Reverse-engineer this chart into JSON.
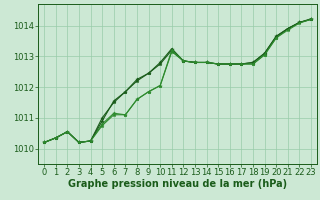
{
  "background_color": "#cce8d4",
  "grid_color": "#99ccaa",
  "line_color_dark": "#1a5c1a",
  "line_color_medium": "#2e8b2e",
  "xlabel": "Graphe pression niveau de la mer (hPa)",
  "xlim": [
    -0.5,
    23.5
  ],
  "ylim": [
    1009.5,
    1014.7
  ],
  "yticks": [
    1010,
    1011,
    1012,
    1013,
    1014
  ],
  "xticks": [
    0,
    1,
    2,
    3,
    4,
    5,
    6,
    7,
    8,
    9,
    10,
    11,
    12,
    13,
    14,
    15,
    16,
    17,
    18,
    19,
    20,
    21,
    22,
    23
  ],
  "series1": [
    [
      0,
      1010.2
    ],
    [
      1,
      1010.35
    ],
    [
      2,
      1010.55
    ],
    [
      3,
      1010.2
    ],
    [
      4,
      1010.25
    ],
    [
      5,
      1010.8
    ],
    [
      6,
      1011.15
    ],
    [
      7,
      1011.1
    ],
    [
      8,
      1011.6
    ],
    [
      9,
      1011.85
    ],
    [
      10,
      1012.05
    ],
    [
      11,
      1013.15
    ],
    [
      12,
      1012.85
    ],
    [
      13,
      1012.8
    ],
    [
      14,
      1012.8
    ],
    [
      15,
      1012.75
    ],
    [
      16,
      1012.75
    ],
    [
      17,
      1012.75
    ],
    [
      18,
      1012.75
    ],
    [
      19,
      1013.05
    ],
    [
      20,
      1013.6
    ],
    [
      21,
      1013.9
    ],
    [
      22,
      1014.1
    ],
    [
      23,
      1014.2
    ]
  ],
  "series2": [
    [
      0,
      1010.2
    ],
    [
      1,
      1010.35
    ],
    [
      2,
      1010.55
    ],
    [
      3,
      1010.2
    ],
    [
      4,
      1010.25
    ],
    [
      5,
      1010.9
    ],
    [
      6,
      1011.55
    ],
    [
      7,
      1011.85
    ],
    [
      8,
      1012.2
    ],
    [
      9,
      1012.45
    ],
    [
      10,
      1012.75
    ],
    [
      11,
      1013.2
    ],
    [
      12,
      1012.85
    ],
    [
      13,
      1012.8
    ],
    [
      14,
      1012.8
    ],
    [
      15,
      1012.75
    ],
    [
      16,
      1012.75
    ],
    [
      17,
      1012.75
    ],
    [
      18,
      1012.8
    ],
    [
      19,
      1013.1
    ],
    [
      20,
      1013.65
    ],
    [
      21,
      1013.9
    ],
    [
      22,
      1014.1
    ],
    [
      23,
      1014.2
    ]
  ],
  "series3": [
    [
      0,
      1010.2
    ],
    [
      1,
      1010.35
    ],
    [
      2,
      1010.55
    ],
    [
      3,
      1010.2
    ],
    [
      4,
      1010.25
    ],
    [
      5,
      1011.0
    ],
    [
      6,
      1011.5
    ],
    [
      7,
      1011.85
    ],
    [
      8,
      1012.25
    ],
    [
      9,
      1012.45
    ],
    [
      10,
      1012.8
    ],
    [
      11,
      1013.25
    ],
    [
      12,
      1012.85
    ],
    [
      13,
      1012.8
    ],
    [
      14,
      1012.8
    ],
    [
      15,
      1012.75
    ],
    [
      16,
      1012.75
    ],
    [
      17,
      1012.75
    ],
    [
      18,
      1012.8
    ],
    [
      19,
      1013.1
    ],
    [
      20,
      1013.65
    ],
    [
      21,
      1013.9
    ],
    [
      22,
      1014.1
    ],
    [
      23,
      1014.22
    ]
  ],
  "series4": [
    [
      0,
      1010.2
    ],
    [
      1,
      1010.35
    ],
    [
      2,
      1010.55
    ],
    [
      3,
      1010.2
    ],
    [
      4,
      1010.25
    ],
    [
      5,
      1010.75
    ],
    [
      6,
      1011.1
    ],
    [
      7,
      1011.1
    ],
    [
      8,
      1011.6
    ],
    [
      9,
      1011.85
    ],
    [
      10,
      1012.05
    ],
    [
      11,
      1013.2
    ],
    [
      12,
      1012.85
    ],
    [
      13,
      1012.8
    ],
    [
      14,
      1012.8
    ],
    [
      15,
      1012.75
    ],
    [
      16,
      1012.75
    ],
    [
      17,
      1012.75
    ],
    [
      18,
      1012.75
    ],
    [
      19,
      1013.05
    ],
    [
      20,
      1013.6
    ],
    [
      21,
      1013.85
    ],
    [
      22,
      1014.08
    ],
    [
      23,
      1014.2
    ]
  ],
  "marker_size": 2.5,
  "xlabel_fontsize": 7,
  "tick_fontsize": 6,
  "lw1": 0.8,
  "lw2": 0.8,
  "lw3": 0.8,
  "lw4": 0.8
}
